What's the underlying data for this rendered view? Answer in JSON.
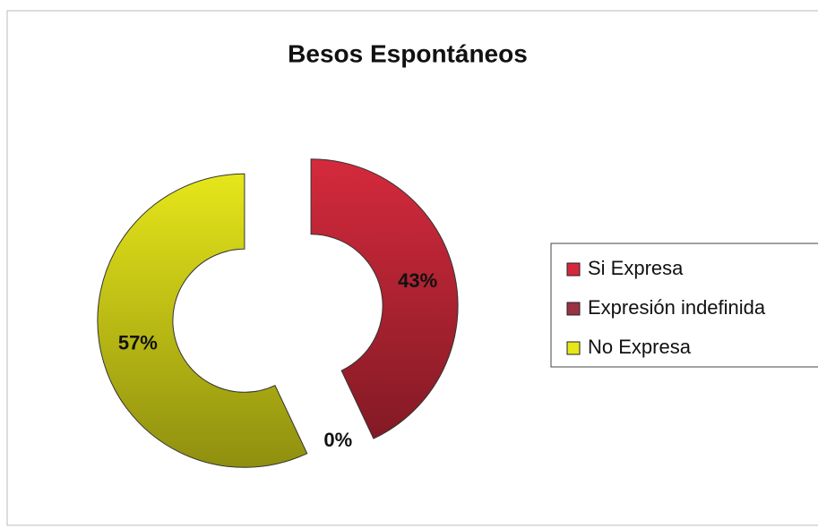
{
  "chart_data": {
    "type": "donut",
    "title": "Besos Espontáneos",
    "categories": [
      "Si Expresa",
      "Expresión indefinida",
      "No Expresa"
    ],
    "values": [
      43,
      0,
      57
    ],
    "value_labels": [
      "43%",
      "0%",
      "57%"
    ],
    "colors": [
      "#d42a3c",
      "#993344",
      "#e6e61a"
    ],
    "legend": "right"
  }
}
